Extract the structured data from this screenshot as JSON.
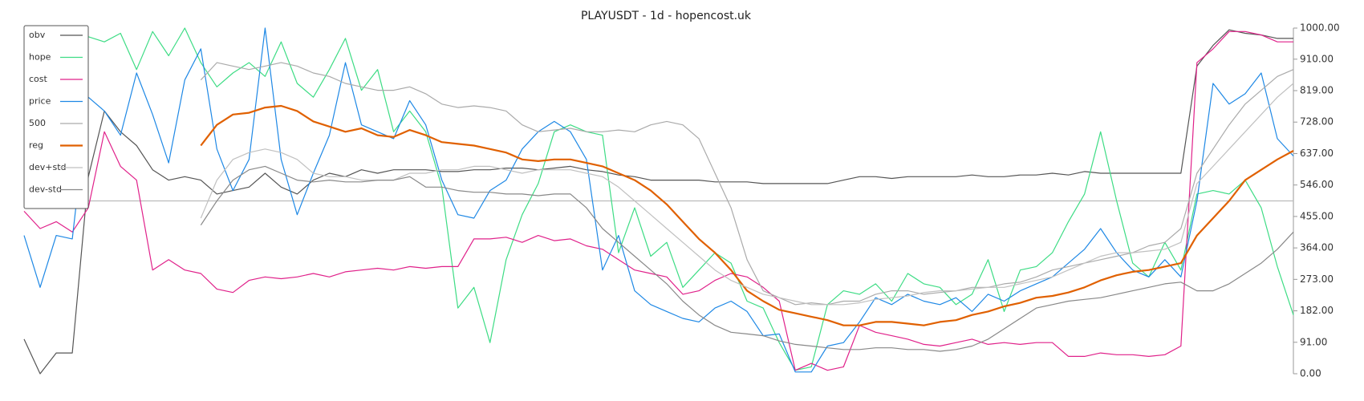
{
  "chart_data": {
    "type": "line",
    "title": "PLAYUSDT - 1d - hopencost.uk",
    "ylim": [
      0,
      1000
    ],
    "yticks": [
      {
        "value": 0,
        "label": "0.00"
      },
      {
        "value": 91,
        "label": "91.00"
      },
      {
        "value": 182,
        "label": "182.00"
      },
      {
        "value": 273,
        "label": "273.00"
      },
      {
        "value": 364,
        "label": "364.00"
      },
      {
        "value": 455,
        "label": "455.00"
      },
      {
        "value": 546,
        "label": "546.00"
      },
      {
        "value": 637,
        "label": "637.00"
      },
      {
        "value": 728,
        "label": "728.00"
      },
      {
        "value": 819,
        "label": "819.00"
      },
      {
        "value": 910,
        "label": "910.00"
      },
      {
        "value": 1000,
        "label": "1000.00"
      }
    ],
    "reference_line": 500,
    "legend": "upper left",
    "series": [
      {
        "name": "obv",
        "color": "#555555",
        "values": [
          100,
          0,
          60,
          60,
          570,
          760,
          700,
          660,
          590,
          560,
          570,
          560,
          520,
          530,
          540,
          580,
          540,
          520,
          560,
          580,
          570,
          590,
          580,
          590,
          590,
          590,
          585,
          585,
          590,
          590,
          595,
          595,
          590,
          595,
          600,
          590,
          585,
          575,
          570,
          560,
          560,
          560,
          560,
          555,
          555,
          555,
          550,
          550,
          550,
          550,
          550,
          560,
          570,
          570,
          565,
          570,
          570,
          570,
          570,
          575,
          570,
          570,
          575,
          575,
          580,
          575,
          585,
          580,
          580,
          580,
          580,
          580,
          580,
          890,
          950,
          995,
          985,
          980,
          970,
          970
        ]
      },
      {
        "name": "hope",
        "color": "#3ddc84",
        "values": [
          940,
          940,
          945,
          940,
          975,
          960,
          985,
          880,
          990,
          920,
          1000,
          900,
          830,
          870,
          900,
          860,
          960,
          840,
          800,
          880,
          970,
          820,
          880,
          700,
          760,
          700,
          540,
          190,
          250,
          90,
          330,
          460,
          550,
          700,
          720,
          700,
          690,
          350,
          480,
          340,
          380,
          250,
          300,
          350,
          320,
          210,
          190,
          90,
          10,
          20,
          200,
          240,
          230,
          260,
          210,
          290,
          260,
          250,
          200,
          230,
          330,
          180,
          300,
          310,
          350,
          440,
          520,
          700,
          500,
          320,
          280,
          380,
          300,
          520,
          530,
          520,
          560,
          480,
          310,
          170
        ]
      },
      {
        "name": "cost",
        "color": "#e0218a",
        "values": [
          470,
          420,
          440,
          410,
          480,
          700,
          600,
          560,
          300,
          330,
          300,
          290,
          245,
          235,
          270,
          280,
          275,
          280,
          290,
          280,
          295,
          300,
          305,
          300,
          310,
          305,
          310,
          310,
          390,
          390,
          395,
          380,
          400,
          385,
          390,
          370,
          360,
          330,
          300,
          290,
          280,
          230,
          240,
          270,
          290,
          280,
          250,
          210,
          10,
          30,
          10,
          20,
          140,
          120,
          110,
          100,
          85,
          80,
          90,
          100,
          85,
          90,
          85,
          90,
          90,
          50,
          50,
          60,
          55,
          55,
          50,
          55,
          80,
          900,
          940,
          990,
          990,
          980,
          960,
          960
        ]
      },
      {
        "name": "price",
        "color": "#1e88e5",
        "values": [
          400,
          250,
          400,
          390,
          800,
          760,
          690,
          870,
          750,
          610,
          850,
          940,
          650,
          530,
          620,
          1000,
          620,
          460,
          580,
          690,
          900,
          720,
          700,
          680,
          790,
          720,
          560,
          460,
          450,
          530,
          560,
          650,
          700,
          730,
          700,
          620,
          300,
          400,
          240,
          200,
          180,
          160,
          150,
          190,
          210,
          180,
          110,
          115,
          5,
          5,
          80,
          90,
          150,
          220,
          200,
          230,
          210,
          200,
          220,
          180,
          230,
          210,
          240,
          260,
          280,
          320,
          360,
          420,
          350,
          300,
          280,
          330,
          280,
          500,
          840,
          780,
          810,
          870,
          680,
          630
        ]
      },
      {
        "name": "500",
        "color": "#aaaaaa",
        "values": [
          null,
          null,
          null,
          null,
          null,
          null,
          null,
          null,
          null,
          null,
          null,
          850,
          900,
          890,
          880,
          890,
          900,
          890,
          870,
          860,
          840,
          830,
          820,
          820,
          830,
          810,
          780,
          770,
          775,
          770,
          760,
          720,
          700,
          705,
          710,
          700,
          700,
          705,
          700,
          720,
          730,
          720,
          680,
          580,
          480,
          330,
          240,
          220,
          200,
          205,
          200,
          210,
          210,
          230,
          240,
          240,
          230,
          235,
          240,
          250,
          250,
          260,
          265,
          280,
          300,
          310,
          320,
          330,
          340,
          350,
          370,
          380,
          420,
          580,
          650,
          720,
          780,
          820,
          860,
          880
        ]
      },
      {
        "name": "reg",
        "color": "#e06000",
        "values": [
          null,
          null,
          null,
          null,
          null,
          null,
          null,
          null,
          null,
          null,
          null,
          660,
          720,
          750,
          755,
          770,
          775,
          760,
          730,
          715,
          700,
          710,
          690,
          685,
          705,
          690,
          670,
          665,
          660,
          650,
          640,
          620,
          615,
          620,
          620,
          610,
          600,
          580,
          560,
          530,
          490,
          440,
          390,
          350,
          300,
          240,
          210,
          185,
          175,
          165,
          155,
          140,
          140,
          150,
          150,
          145,
          140,
          150,
          155,
          170,
          180,
          195,
          205,
          220,
          225,
          235,
          250,
          270,
          285,
          295,
          300,
          310,
          320,
          400,
          450,
          500,
          560,
          590,
          620,
          645
        ]
      },
      {
        "name": "dev+std",
        "color": "#c0c0c0",
        "values": [
          null,
          null,
          null,
          null,
          null,
          null,
          null,
          null,
          null,
          null,
          null,
          450,
          560,
          620,
          640,
          650,
          640,
          620,
          580,
          570,
          570,
          560,
          560,
          560,
          580,
          580,
          590,
          590,
          600,
          600,
          590,
          580,
          590,
          590,
          590,
          580,
          570,
          540,
          500,
          460,
          420,
          380,
          340,
          300,
          270,
          250,
          230,
          220,
          210,
          200,
          200,
          200,
          205,
          215,
          220,
          225,
          235,
          240,
          240,
          245,
          250,
          250,
          260,
          270,
          280,
          300,
          320,
          340,
          350,
          350,
          355,
          360,
          380,
          550,
          600,
          650,
          700,
          750,
          800,
          840
        ]
      },
      {
        "name": "dev-std",
        "color": "#888888",
        "values": [
          null,
          null,
          null,
          null,
          null,
          null,
          null,
          null,
          null,
          null,
          null,
          430,
          500,
          560,
          590,
          600,
          580,
          560,
          555,
          560,
          555,
          555,
          560,
          560,
          570,
          540,
          540,
          530,
          525,
          525,
          520,
          520,
          515,
          520,
          520,
          480,
          420,
          380,
          340,
          300,
          260,
          210,
          170,
          140,
          120,
          115,
          110,
          95,
          85,
          80,
          75,
          70,
          70,
          75,
          75,
          70,
          70,
          65,
          70,
          80,
          100,
          130,
          160,
          190,
          200,
          210,
          215,
          220,
          230,
          240,
          250,
          260,
          265,
          240,
          240,
          260,
          290,
          320,
          360,
          410
        ]
      }
    ]
  }
}
